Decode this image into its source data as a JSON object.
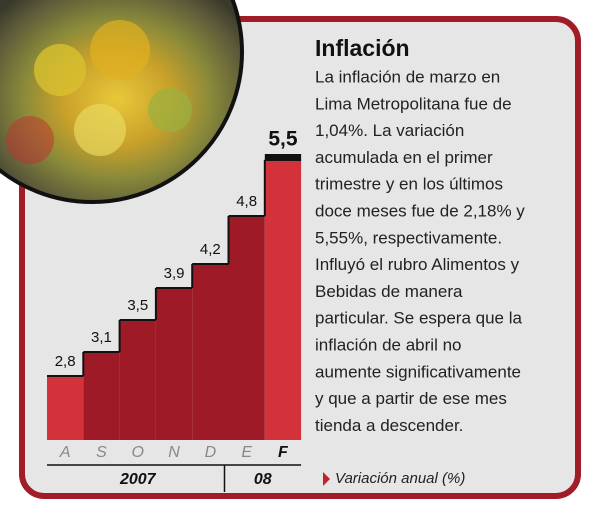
{
  "chart_data": {
    "type": "bar",
    "title": "Inflación",
    "body_lines": [
      "La inflación de marzo en",
      "Lima Metropolitana fue de",
      "1,04%. La variación",
      "acumulada en el primer",
      "trimestre y en los últimos",
      "doce meses fue de 2,18% y",
      "5,55%, respectivamente.",
      "Influyó el rubro Alimentos y",
      "Bebidas de manera",
      "particular. Se espera que la",
      "inflación de abril no",
      "aumente significativamente",
      "y que a partir de ese mes",
      "tienda a descender."
    ],
    "categories": [
      "A",
      "S",
      "O",
      "N",
      "D",
      "E",
      "F"
    ],
    "values": [
      2.8,
      3.1,
      3.5,
      3.9,
      4.2,
      4.8,
      5.5
    ],
    "value_labels": [
      "2,8",
      "3,1",
      "3,5",
      "3,9",
      "4,2",
      "4,8",
      "5,5"
    ],
    "colors": [
      "#d3323a",
      "#9e1a26",
      "#9e1a26",
      "#9e1a26",
      "#9e1a26",
      "#9e1a26",
      "#d3323a"
    ],
    "years": [
      "2007",
      "08"
    ],
    "legend": "Variación anual (%)",
    "ylim": [
      2,
      7.5
    ]
  }
}
